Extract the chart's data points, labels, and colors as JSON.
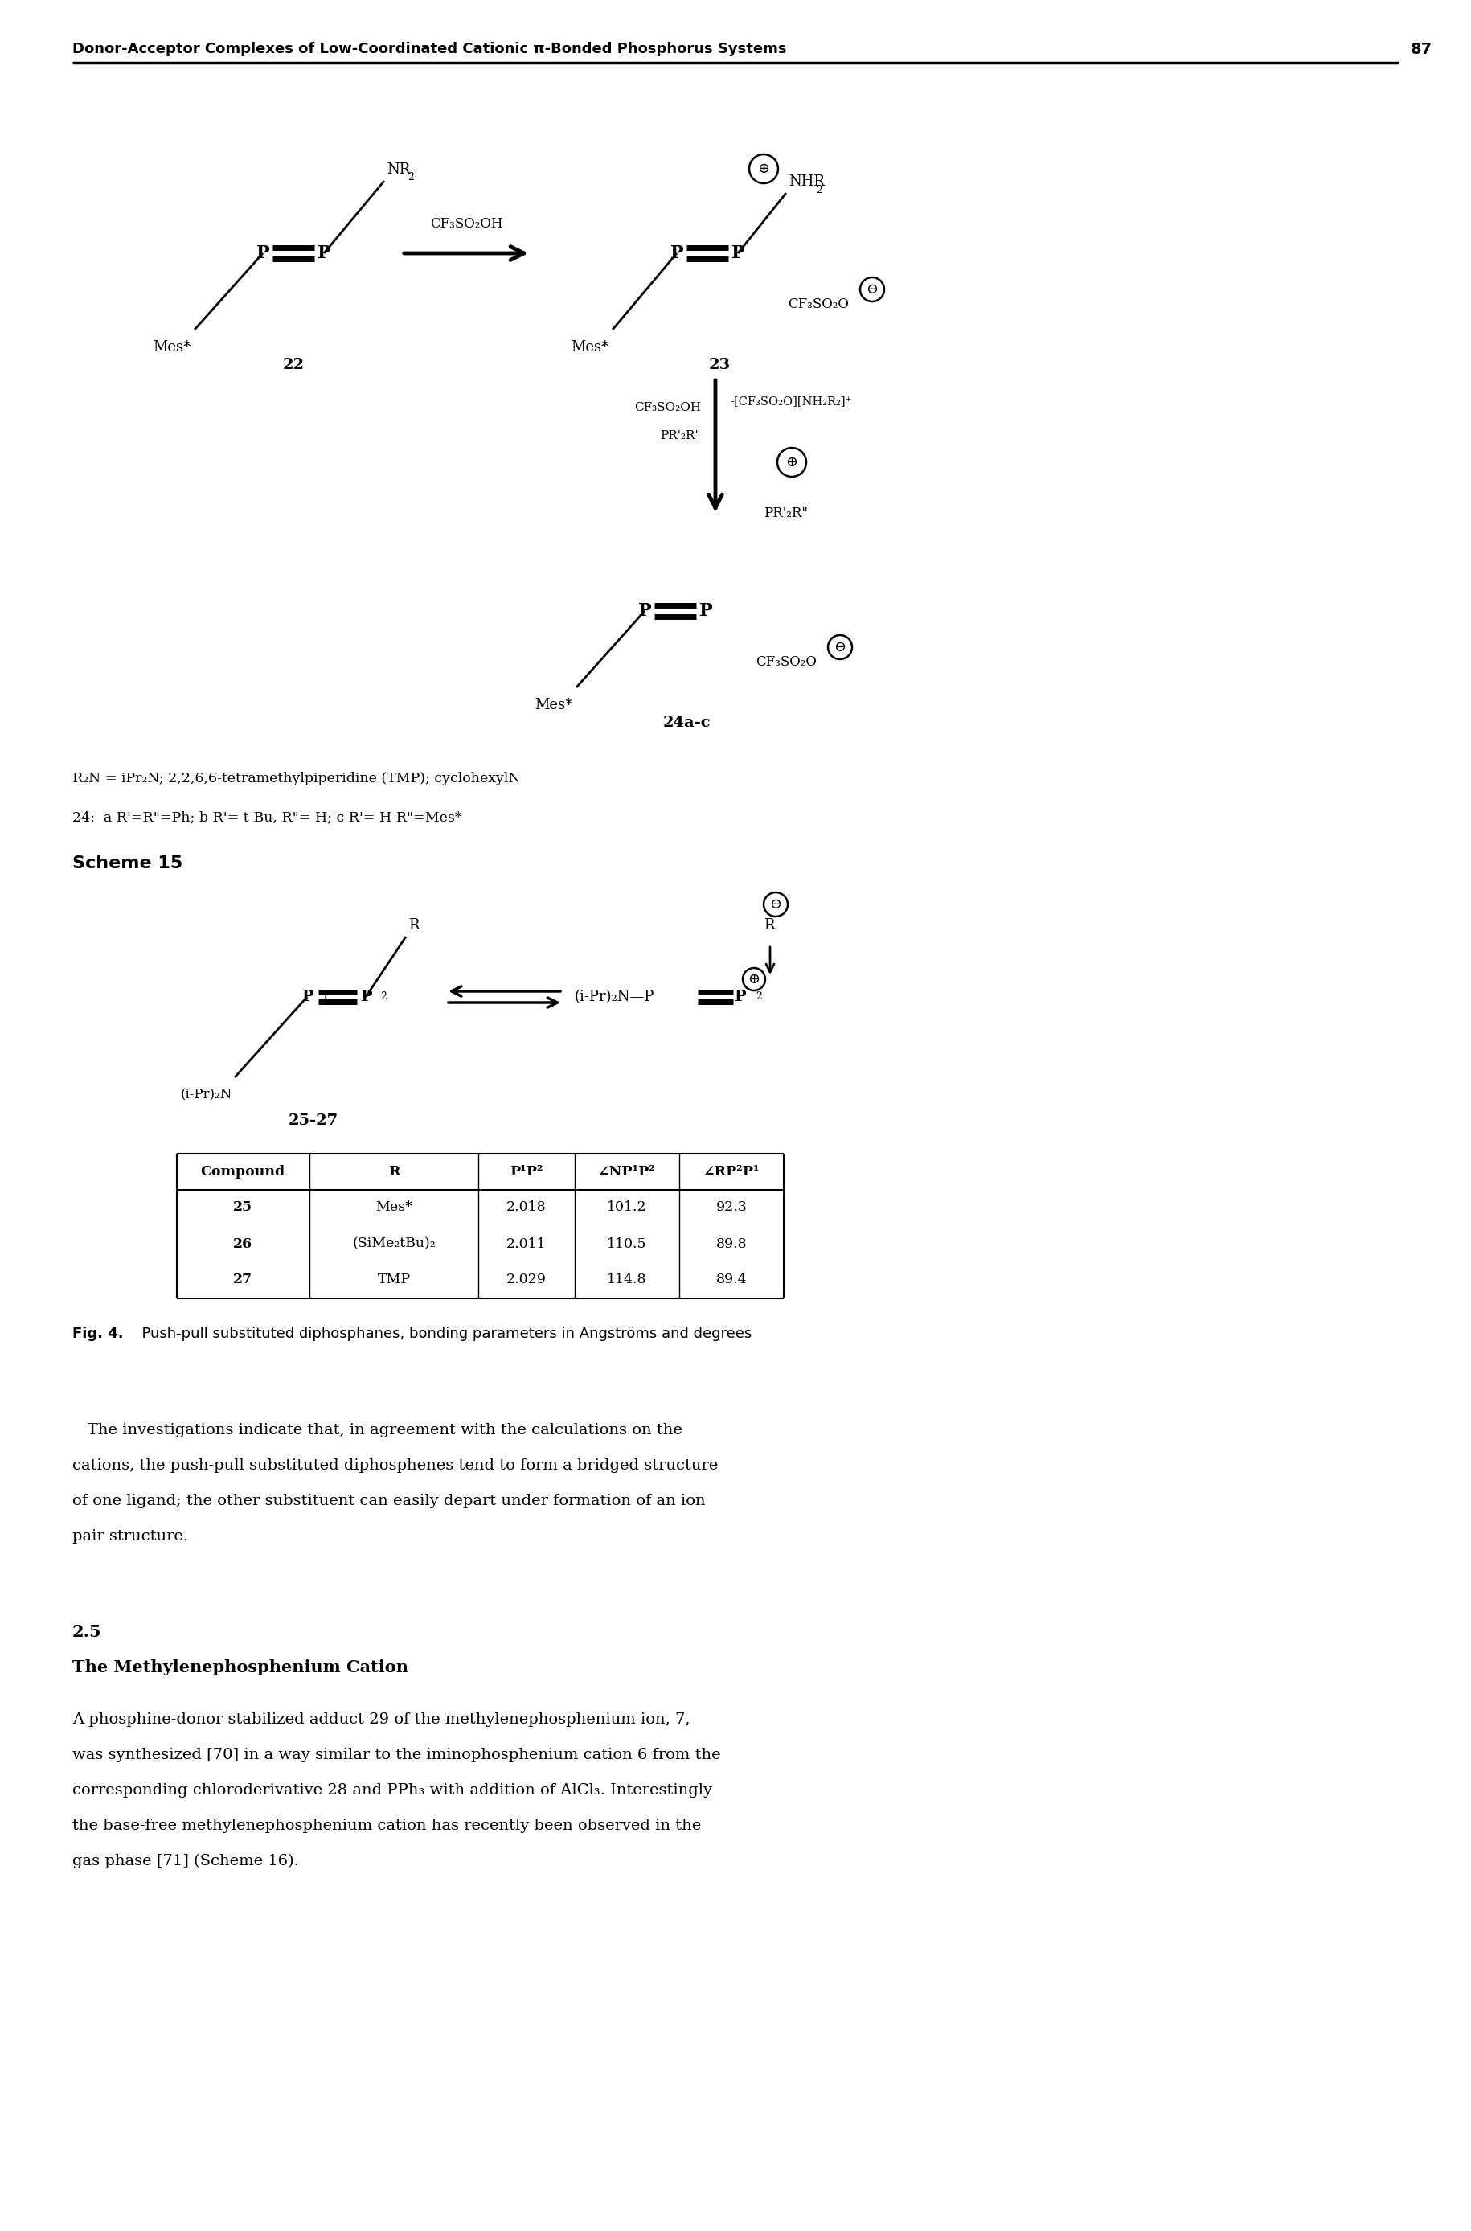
{
  "header_text": "Donor-Acceptor Complexes of Low-Coordinated Cationic π-Bonded Phosphorus Systems",
  "page_number": "87",
  "table_headers": [
    "Compound",
    "R",
    "P¹P²",
    "∠NP¹P²",
    "∠RP²P¹"
  ],
  "table_rows": [
    [
      "25",
      "Mes*",
      "2.018",
      "101.2",
      "92.3"
    ],
    [
      "26",
      "(SiMe₂tBu)₂",
      "2.011",
      "110.5",
      "89.8"
    ],
    [
      "27",
      "TMP",
      "2.029",
      "114.8",
      "89.4"
    ]
  ],
  "fig_caption_bold": "Fig. 4.",
  "fig_caption_rest": "  Push-pull substituted diphosphanes, bonding parameters in Angströms and degrees",
  "body1_lines": [
    "   The investigations indicate that, in agreement with the calculations on the",
    "cations, the push-pull substituted diphosphenes tend to form a bridged structure",
    "of one ligand; the other substituent can easily depart under formation of an ion",
    "pair structure."
  ],
  "section_num": "2.5",
  "section_title": "The Methylenephosphenium Cation",
  "body2_lines": [
    "A phosphine-donor stabilized adduct 29 of the methylenephosphenium ion, 7,",
    "was synthesized [70] in a way similar to the iminophosphenium cation 6 from the",
    "corresponding chloroderivative 28 and PPh₃ with addition of AlCl₃. Interestingly",
    "the base-free methylenephosphenium cation has recently been observed in the",
    "gas phase [71] (Scheme 16)."
  ],
  "notes_line1": "R₂N = iPr₂N; 2,2,6,6-tetramethylpiperidine (TMP); cyclohexylN",
  "notes_line2": "24:  a R'=R\"=Ph; b R'= t-Bu, R\"= H; c R'= H R\"=Mes*",
  "scheme15_label": "Scheme 15",
  "label_25_27": "25-27"
}
